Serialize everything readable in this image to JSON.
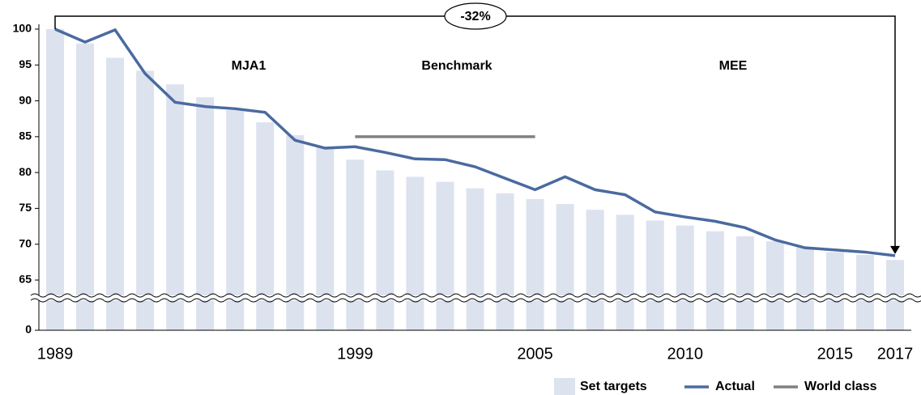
{
  "chart_data": {
    "type": "bar_line",
    "categories": [
      "1989",
      null,
      null,
      null,
      null,
      null,
      null,
      null,
      null,
      null,
      "1999",
      null,
      null,
      null,
      null,
      null,
      "2005",
      null,
      null,
      null,
      null,
      "2010",
      null,
      null,
      null,
      null,
      "2015",
      null,
      "2017"
    ],
    "series": [
      {
        "name": "Set targets",
        "type": "bar",
        "color": "#dde2ef",
        "values": [
          100,
          98,
          96,
          94.2,
          92.3,
          90.5,
          88.7,
          87,
          85.2,
          83.5,
          81.8,
          80.3,
          79.4,
          78.7,
          77.8,
          77.1,
          76.3,
          75.6,
          74.8,
          74.1,
          73.3,
          72.6,
          71.8,
          71.1,
          70.4,
          69.6,
          68.9,
          68.5,
          67.8
        ]
      },
      {
        "name": "Actual",
        "type": "line",
        "color": "#4a6aa0",
        "values": [
          100,
          98.2,
          99.9,
          93.8,
          89.8,
          89.2,
          88.9,
          88.4,
          84.5,
          83.4,
          83.6,
          82.8,
          81.9,
          81.8,
          80.8,
          79.2,
          77.6,
          79.4,
          77.6,
          76.9,
          74.5,
          73.8,
          73.2,
          72.3,
          70.6,
          69.5,
          69.2,
          68.9,
          68.4
        ]
      },
      {
        "name": "World class",
        "type": "line",
        "color": "#808080",
        "values": [
          null,
          null,
          null,
          null,
          null,
          null,
          null,
          null,
          null,
          null,
          85,
          85,
          85,
          85,
          85,
          85,
          85,
          null,
          null,
          null,
          null,
          null,
          null,
          null,
          null,
          null,
          null,
          null,
          null
        ]
      }
    ],
    "ylim": [
      0,
      100
    ],
    "y_break": [
      0,
      63
    ],
    "yticks": [
      0,
      65,
      70,
      75,
      80,
      85,
      90,
      95,
      100
    ],
    "annotations": [
      "-32%",
      "MJA1",
      "Benchmark",
      "MEE"
    ],
    "legend": "bottom-right"
  }
}
